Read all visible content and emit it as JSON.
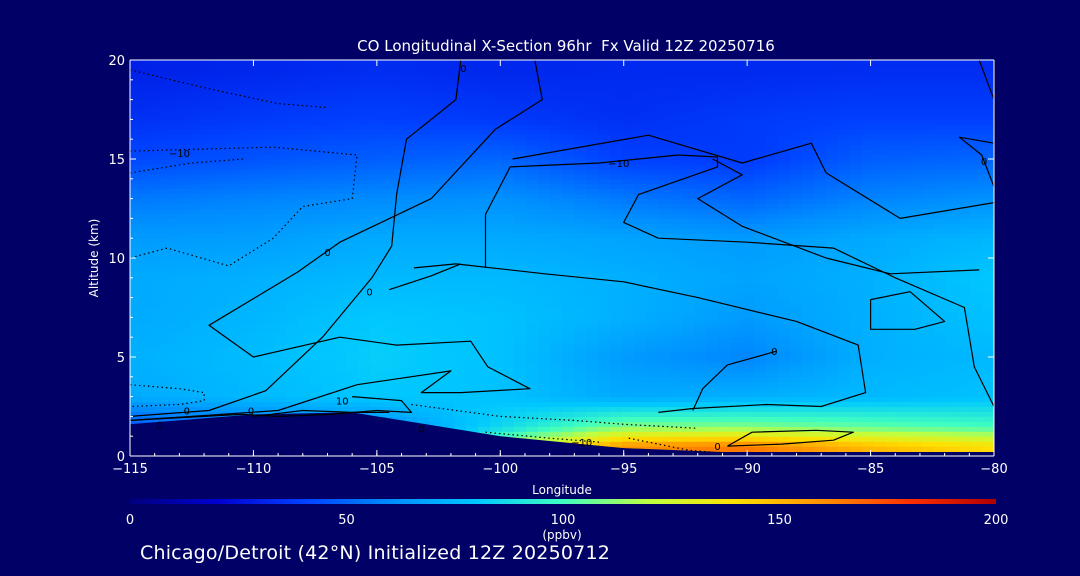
{
  "chart_data": {
    "type": "heatmap",
    "title": "CO Longitudinal X-Section 96hr  Fx Valid 12Z 20250716",
    "xlabel": "Longitude",
    "ylabel": "Altitude (km)",
    "xlim": [
      -115,
      -80
    ],
    "ylim": [
      0,
      20
    ],
    "xticks": [
      -115,
      -110,
      -105,
      -100,
      -95,
      -90,
      -85,
      -80
    ],
    "xtick_labels": [
      "−115",
      "−110",
      "−105",
      "−100",
      "−95",
      "−90",
      "−85",
      "−80"
    ],
    "yticks": [
      0,
      5,
      10,
      15,
      20
    ],
    "ytick_labels": [
      "0",
      "5",
      "10",
      "15",
      "20"
    ],
    "colorbar": {
      "label": "(ppbv)",
      "range": [
        0,
        200
      ],
      "ticks": [
        0,
        50,
        100,
        150,
        200
      ],
      "tick_labels": [
        "0",
        "50",
        "100",
        "150",
        "200"
      ],
      "colors": [
        "#00007f",
        "#0000d0",
        "#0040ff",
        "#008cff",
        "#00c8ff",
        "#40ffc0",
        "#c0ff40",
        "#ffe000",
        "#ff9000",
        "#ff3000",
        "#b00000"
      ]
    },
    "field_grid": {
      "lon": [
        -115,
        -110,
        -105,
        -100,
        -95,
        -90,
        -85,
        -80
      ],
      "alt": [
        0.5,
        1.5,
        3,
        5,
        7,
        9,
        11,
        13,
        15,
        17,
        19.5
      ],
      "values": [
        [
          null,
          null,
          40,
          115,
          160,
          165,
          150,
          140
        ],
        [
          45,
          55,
          60,
          85,
          110,
          110,
          105,
          100
        ],
        [
          70,
          75,
          80,
          78,
          70,
          72,
          75,
          78
        ],
        [
          72,
          76,
          82,
          78,
          65,
          58,
          72,
          75
        ],
        [
          70,
          74,
          80,
          78,
          72,
          65,
          72,
          78
        ],
        [
          70,
          72,
          75,
          75,
          72,
          68,
          72,
          80
        ],
        [
          65,
          66,
          70,
          70,
          68,
          65,
          70,
          74
        ],
        [
          55,
          58,
          60,
          62,
          55,
          50,
          58,
          62
        ],
        [
          42,
          45,
          48,
          50,
          40,
          38,
          48,
          50
        ],
        [
          35,
          38,
          40,
          38,
          35,
          38,
          40,
          40
        ],
        [
          30,
          32,
          34,
          32,
          33,
          33,
          34,
          34
        ]
      ]
    },
    "terrain": [
      [
        -115,
        1.6
      ],
      [
        -110,
        2.1
      ],
      [
        -106,
        2.2
      ],
      [
        -100,
        1.0
      ],
      [
        -95,
        0.4
      ],
      [
        -91,
        0.2
      ],
      [
        -85,
        0.2
      ],
      [
        -80,
        0.2
      ]
    ],
    "contours": [
      {
        "level": "0",
        "style": "solid",
        "points": [
          [
            -98.6,
            20
          ],
          [
            -98.3,
            18
          ],
          [
            -100.2,
            16.5
          ],
          [
            -102.8,
            13
          ],
          [
            -106.5,
            10.8
          ],
          [
            -108.2,
            9.3
          ],
          [
            -111.8,
            6.6
          ],
          [
            -110,
            5
          ],
          [
            -106.5,
            6
          ],
          [
            -104.2,
            5.6
          ],
          [
            -101.2,
            5.8
          ],
          [
            -100.5,
            4.5
          ],
          [
            -98.8,
            3.4
          ],
          [
            -101.6,
            3.2
          ],
          [
            -103.2,
            3.2
          ],
          [
            -102,
            4.3
          ],
          [
            -105.8,
            3.6
          ],
          [
            -109,
            2.3
          ],
          [
            -112.5,
            2
          ],
          [
            -115,
            1.8
          ]
        ]
      },
      {
        "level": "0",
        "style": "solid",
        "points": [
          [
            -101.6,
            20
          ],
          [
            -101.8,
            18
          ],
          [
            -103.8,
            16
          ],
          [
            -104.2,
            13.2
          ],
          [
            -104.4,
            10.6
          ],
          [
            -105.2,
            9
          ],
          [
            -107.2,
            6
          ],
          [
            -109.5,
            3.3
          ],
          [
            -111.8,
            2.3
          ],
          [
            -115,
            2
          ]
        ]
      },
      {
        "level": "0",
        "style": "solid",
        "points": [
          [
            -99.5,
            15
          ],
          [
            -94,
            16.2
          ],
          [
            -90.2,
            14.8
          ],
          [
            -87.4,
            15.8
          ],
          [
            -86.8,
            14.3
          ],
          [
            -83.8,
            12
          ],
          [
            -80,
            12.8
          ]
        ]
      },
      {
        "level": "10",
        "style": "solid",
        "points": [
          [
            -91.4,
            15
          ],
          [
            -90.2,
            14.2
          ],
          [
            -92,
            13
          ],
          [
            -90.2,
            11.6
          ],
          [
            -86.8,
            10
          ],
          [
            -84.2,
            9.2
          ],
          [
            -80.6,
            9.4
          ]
        ]
      },
      {
        "level": "0",
        "style": "solid",
        "points": [
          [
            -100.6,
            9.5
          ],
          [
            -100.6,
            12.2
          ],
          [
            -99.6,
            14.6
          ],
          [
            -96,
            14.8
          ],
          [
            -92.8,
            15.2
          ],
          [
            -91.2,
            15.1
          ],
          [
            -91.2,
            14.6
          ],
          [
            -94.4,
            13.2
          ],
          [
            -95,
            11.8
          ],
          [
            -93.6,
            11
          ],
          [
            -90,
            10.8
          ],
          [
            -86.5,
            10.5
          ],
          [
            -84,
            9
          ],
          [
            -81.2,
            7.5
          ],
          [
            -80.8,
            4.5
          ],
          [
            -80,
            2.5
          ]
        ]
      },
      {
        "level": "0",
        "style": "solid",
        "points": [
          [
            -103.5,
            9.5
          ],
          [
            -101.8,
            9.7
          ],
          [
            -98.2,
            9.2
          ],
          [
            -95,
            8.8
          ],
          [
            -92,
            8
          ],
          [
            -88,
            6.8
          ],
          [
            -85.5,
            5.6
          ],
          [
            -85.2,
            3.2
          ],
          [
            -87,
            2.5
          ],
          [
            -89.2,
            2.6
          ],
          [
            -92.2,
            2.4
          ],
          [
            -93.6,
            2.2
          ]
        ]
      },
      {
        "level": "0",
        "style": "solid",
        "points": [
          [
            -104.5,
            8.4
          ],
          [
            -102.8,
            9.1
          ],
          [
            -101.6,
            9.7
          ]
        ]
      },
      {
        "level": "0",
        "style": "solid",
        "points": [
          [
            -88.8,
            5.3
          ],
          [
            -90.8,
            4.6
          ],
          [
            -91.8,
            3.4
          ],
          [
            -92.2,
            2.3
          ]
        ]
      },
      {
        "level": "0",
        "style": "solid",
        "points": [
          [
            -85,
            7.9
          ],
          [
            -83.4,
            8.3
          ],
          [
            -82,
            6.8
          ],
          [
            -83.2,
            6.4
          ],
          [
            -85,
            6.4
          ],
          [
            -85,
            7.9
          ]
        ]
      },
      {
        "level": "0",
        "style": "solid",
        "points": [
          [
            -80.6,
            20
          ],
          [
            -80,
            18
          ]
        ]
      },
      {
        "level": "0",
        "style": "solid",
        "points": [
          [
            -80,
            15.8
          ],
          [
            -81.4,
            16.1
          ],
          [
            -80.5,
            15.2
          ],
          [
            -80,
            13.6
          ]
        ]
      },
      {
        "level": "10",
        "style": "solid",
        "points": [
          [
            -106,
            3
          ],
          [
            -104,
            2.8
          ],
          [
            -103.6,
            2.2
          ],
          [
            -105,
            2.3
          ],
          [
            -106.9,
            2.1
          ],
          [
            -109,
            2
          ],
          [
            -110.5,
            2.1
          ],
          [
            -115,
            1.8
          ]
        ]
      },
      {
        "level": "0",
        "style": "solid",
        "points": [
          [
            -110,
            2
          ],
          [
            -108,
            2.3
          ],
          [
            -106,
            2.2
          ],
          [
            -104.5,
            2.2
          ]
        ]
      },
      {
        "level": "0",
        "style": "solid",
        "points": [
          [
            -90.8,
            0.5
          ],
          [
            -89.8,
            1.2
          ],
          [
            -87.2,
            1.3
          ],
          [
            -85.7,
            1.2
          ],
          [
            -86.5,
            0.8
          ],
          [
            -88.6,
            0.6
          ],
          [
            -90.8,
            0.5
          ]
        ]
      },
      {
        "level": "-10",
        "style": "dotted",
        "points": [
          [
            -115,
            3.6
          ],
          [
            -113,
            3.4
          ],
          [
            -112,
            3.2
          ],
          [
            -112,
            2.8
          ],
          [
            -113,
            2.6
          ],
          [
            -115,
            2.5
          ]
        ]
      },
      {
        "level": "-10",
        "style": "dotted",
        "points": [
          [
            -115,
            15.4
          ],
          [
            -109.2,
            15.6
          ],
          [
            -105.8,
            15.2
          ],
          [
            -106,
            13
          ],
          [
            -108,
            12.6
          ],
          [
            -109.2,
            11
          ],
          [
            -111,
            9.6
          ],
          [
            -113.5,
            10.5
          ],
          [
            -115,
            10
          ]
        ]
      },
      {
        "level": "-10",
        "style": "dotted",
        "points": [
          [
            -115,
            14.3
          ],
          [
            -112.5,
            14.8
          ],
          [
            -110.4,
            15
          ]
        ]
      },
      {
        "level": "-10",
        "style": "dotted",
        "points": [
          [
            -103.6,
            2.6
          ],
          [
            -100,
            2
          ],
          [
            -97,
            1.8
          ],
          [
            -95,
            1.6
          ],
          [
            -92,
            1.4
          ]
        ]
      },
      {
        "level": "-10",
        "style": "dotted",
        "points": [
          [
            -100.6,
            1.2
          ],
          [
            -98,
            0.9
          ],
          [
            -96,
            0.7
          ]
        ]
      },
      {
        "level": "-10",
        "style": "dotted",
        "points": [
          [
            -94.8,
            0.9
          ],
          [
            -93.6,
            0.6
          ],
          [
            -92.4,
            0.3
          ],
          [
            -91.5,
            0.2
          ]
        ]
      },
      {
        "level": "-10",
        "style": "dotted",
        "points": [
          [
            -115,
            19.5
          ],
          [
            -112,
            18.6
          ],
          [
            -109,
            17.8
          ],
          [
            -107,
            17.6
          ]
        ]
      }
    ],
    "contour_labels": [
      {
        "text": "0",
        "x": -101.5,
        "y": 19.6
      },
      {
        "text": "−10",
        "x": -113,
        "y": 15.3
      },
      {
        "text": "−10",
        "x": -95.2,
        "y": 14.8
      },
      {
        "text": "0",
        "x": -80.4,
        "y": 14.9
      },
      {
        "text": "0",
        "x": -107,
        "y": 10.3
      },
      {
        "text": "0",
        "x": -105.3,
        "y": 8.3
      },
      {
        "text": "0",
        "x": -88.9,
        "y": 5.3
      },
      {
        "text": "0",
        "x": -112.7,
        "y": 2.3
      },
      {
        "text": "0",
        "x": -113.8,
        "y": 1.6
      },
      {
        "text": "0",
        "x": -110.1,
        "y": 2.3
      },
      {
        "text": "10",
        "x": -106.4,
        "y": 2.8
      },
      {
        "text": "0",
        "x": -103.2,
        "y": 1.4
      },
      {
        "text": "−10",
        "x": -96.7,
        "y": 0.7
      },
      {
        "text": "0",
        "x": -91.2,
        "y": 0.5
      }
    ]
  },
  "caption": "Chicago/Detroit (42°N) Initialized 12Z 20250712"
}
